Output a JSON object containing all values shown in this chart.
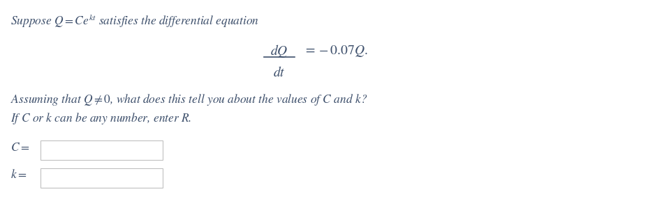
{
  "bg_color": "#ffffff",
  "text_color": "#4a5568",
  "line1": "Suppose $Q = Ce^{kt}$ satisfies the differential equation",
  "line3": "Assuming that $Q \\neq 0$, what does this tell you about the values of $C$ and $k$?",
  "line4": "If $C$ or $k$ can be any number, enter $R$.",
  "label_C": "$C =$",
  "label_k": "$k =$",
  "eq_num": "$dQ$",
  "eq_den": "$dt$",
  "eq_rhs": "$= -0.07Q.$",
  "fontsize_main": 12.5,
  "fontsize_eq": 14,
  "text_color_hex": "#3d4f6b"
}
